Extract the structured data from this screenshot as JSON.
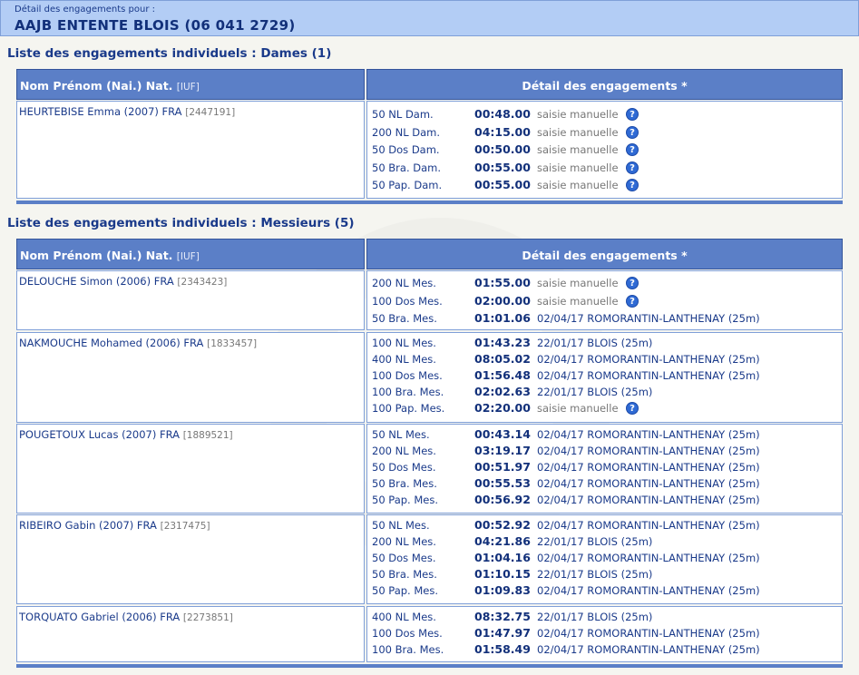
{
  "header": {
    "subtitle": "Détail des engagements pour :",
    "club": "AAJB ENTENTE BLOIS (06 041 2729)"
  },
  "columns": {
    "name": "Nom Prénom (Nai.) Nat.",
    "iuf": "[IUF]",
    "detail": "Détail des engagements *"
  },
  "icons": {
    "help": "question-circle-icon",
    "help_glyph": "?",
    "watermark": "ffn-logo"
  },
  "sections": [
    {
      "title": "Liste des engagements individuels : Dames (1)",
      "swimmers": [
        {
          "name": "HEURTEBISE Emma (2007) FRA",
          "iuf": "[2447191]",
          "entries": [
            {
              "event": "50 NL Dam.",
              "time": "00:48.00",
              "source": "saisie manuelle",
              "manual": true
            },
            {
              "event": "200 NL Dam.",
              "time": "04:15.00",
              "source": "saisie manuelle",
              "manual": true
            },
            {
              "event": "50 Dos Dam.",
              "time": "00:50.00",
              "source": "saisie manuelle",
              "manual": true
            },
            {
              "event": "50 Bra. Dam.",
              "time": "00:55.00",
              "source": "saisie manuelle",
              "manual": true
            },
            {
              "event": "50 Pap. Dam.",
              "time": "00:55.00",
              "source": "saisie manuelle",
              "manual": true
            }
          ]
        }
      ]
    },
    {
      "title": "Liste des engagements individuels : Messieurs (5)",
      "swimmers": [
        {
          "name": "DELOUCHE Simon (2006) FRA",
          "iuf": "[2343423]",
          "entries": [
            {
              "event": "200 NL Mes.",
              "time": "01:55.00",
              "source": "saisie manuelle",
              "manual": true
            },
            {
              "event": "100 Dos Mes.",
              "time": "02:00.00",
              "source": "saisie manuelle",
              "manual": true
            },
            {
              "event": "50 Bra. Mes.",
              "time": "01:01.06",
              "source": "02/04/17 ROMORANTIN-LANTHENAY (25m)",
              "manual": false
            }
          ]
        },
        {
          "name": "NAKMOUCHE Mohamed (2006) FRA",
          "iuf": "[1833457]",
          "entries": [
            {
              "event": "100 NL Mes.",
              "time": "01:43.23",
              "source": "22/01/17 BLOIS (25m)",
              "manual": false
            },
            {
              "event": "400 NL Mes.",
              "time": "08:05.02",
              "source": "02/04/17 ROMORANTIN-LANTHENAY (25m)",
              "manual": false
            },
            {
              "event": "100 Dos Mes.",
              "time": "01:56.48",
              "source": "02/04/17 ROMORANTIN-LANTHENAY (25m)",
              "manual": false
            },
            {
              "event": "100 Bra. Mes.",
              "time": "02:02.63",
              "source": "22/01/17 BLOIS (25m)",
              "manual": false
            },
            {
              "event": "100 Pap. Mes.",
              "time": "02:20.00",
              "source": "saisie manuelle",
              "manual": true
            }
          ]
        },
        {
          "name": "POUGETOUX Lucas (2007) FRA",
          "iuf": "[1889521]",
          "entries": [
            {
              "event": "50 NL Mes.",
              "time": "00:43.14",
              "source": "02/04/17 ROMORANTIN-LANTHENAY (25m)",
              "manual": false
            },
            {
              "event": "200 NL Mes.",
              "time": "03:19.17",
              "source": "02/04/17 ROMORANTIN-LANTHENAY (25m)",
              "manual": false
            },
            {
              "event": "50 Dos Mes.",
              "time": "00:51.97",
              "source": "02/04/17 ROMORANTIN-LANTHENAY (25m)",
              "manual": false
            },
            {
              "event": "50 Bra. Mes.",
              "time": "00:55.53",
              "source": "02/04/17 ROMORANTIN-LANTHENAY (25m)",
              "manual": false
            },
            {
              "event": "50 Pap. Mes.",
              "time": "00:56.92",
              "source": "02/04/17 ROMORANTIN-LANTHENAY (25m)",
              "manual": false
            }
          ]
        },
        {
          "name": "RIBEIRO Gabin (2007) FRA",
          "iuf": "[2317475]",
          "entries": [
            {
              "event": "50 NL Mes.",
              "time": "00:52.92",
              "source": "02/04/17 ROMORANTIN-LANTHENAY (25m)",
              "manual": false
            },
            {
              "event": "200 NL Mes.",
              "time": "04:21.86",
              "source": "22/01/17 BLOIS (25m)",
              "manual": false
            },
            {
              "event": "50 Dos Mes.",
              "time": "01:04.16",
              "source": "02/04/17 ROMORANTIN-LANTHENAY (25m)",
              "manual": false
            },
            {
              "event": "50 Bra. Mes.",
              "time": "01:10.15",
              "source": "22/01/17 BLOIS (25m)",
              "manual": false
            },
            {
              "event": "50 Pap. Mes.",
              "time": "01:09.83",
              "source": "02/04/17 ROMORANTIN-LANTHENAY (25m)",
              "manual": false
            }
          ]
        },
        {
          "name": "TORQUATO Gabriel (2006) FRA",
          "iuf": "[2273851]",
          "entries": [
            {
              "event": "400 NL Mes.",
              "time": "08:32.75",
              "source": "22/01/17 BLOIS (25m)",
              "manual": false
            },
            {
              "event": "100 Dos Mes.",
              "time": "01:47.97",
              "source": "02/04/17 ROMORANTIN-LANTHENAY (25m)",
              "manual": false
            },
            {
              "event": "100 Bra. Mes.",
              "time": "01:58.49",
              "source": "02/04/17 ROMORANTIN-LANTHENAY (25m)",
              "manual": false
            }
          ]
        }
      ]
    }
  ]
}
